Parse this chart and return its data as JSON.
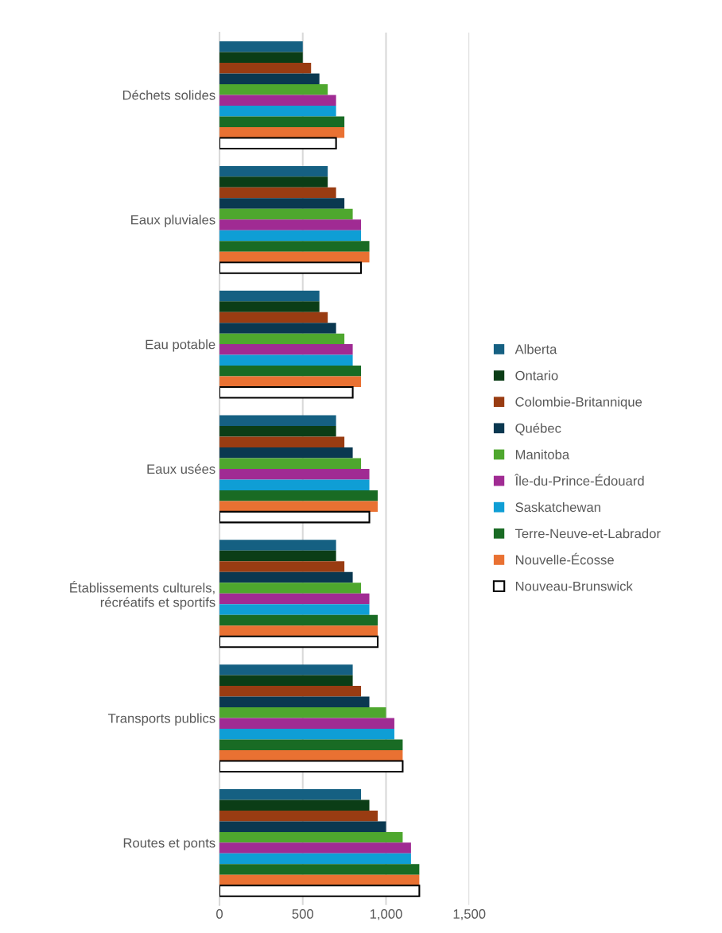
{
  "chart_data": {
    "type": "bar",
    "orientation": "horizontal",
    "categories": [
      "Déchets solides",
      "Eaux pluviales",
      "Eau potable",
      "Eaux usées",
      "Établissements culturels,\nrécréatifs et sportifs",
      "Transports publics",
      "Routes et ponts"
    ],
    "series": [
      {
        "name": "Alberta",
        "color": "#156082",
        "values": [
          500,
          650,
          600,
          700,
          700,
          800,
          850
        ]
      },
      {
        "name": "Ontario",
        "color": "#0b3d16",
        "values": [
          500,
          650,
          600,
          700,
          700,
          800,
          900
        ]
      },
      {
        "name": "Colombie-Britannique",
        "color": "#993c12",
        "values": [
          550,
          700,
          650,
          750,
          750,
          850,
          950
        ]
      },
      {
        "name": "Québec",
        "color": "#0a3850",
        "values": [
          600,
          750,
          700,
          800,
          800,
          900,
          1000
        ]
      },
      {
        "name": "Manitoba",
        "color": "#4ea72e",
        "values": [
          650,
          800,
          750,
          850,
          850,
          1000,
          1100
        ]
      },
      {
        "name": "Île-du-Prince-Édouard",
        "color": "#a02b93",
        "values": [
          700,
          850,
          800,
          900,
          900,
          1050,
          1150
        ]
      },
      {
        "name": "Saskatchewan",
        "color": "#0f9ed5",
        "values": [
          700,
          850,
          800,
          900,
          900,
          1050,
          1150
        ]
      },
      {
        "name": "Terre-Neuve-et-Labrador",
        "color": "#196b24",
        "values": [
          750,
          900,
          850,
          950,
          950,
          1100,
          1200
        ]
      },
      {
        "name": "Nouvelle-Écosse",
        "color": "#e97132",
        "values": [
          750,
          900,
          850,
          950,
          950,
          1100,
          1200
        ]
      },
      {
        "name": "Nouveau-Brunswick",
        "color": "#ffffff",
        "values": [
          700,
          850,
          800,
          900,
          950,
          1100,
          1200
        ]
      }
    ],
    "xlim": [
      0,
      1500
    ],
    "xticks": [
      0,
      500,
      {
        "value": 1000,
        "label": "1,000"
      },
      {
        "value": 1500,
        "label": "1,500"
      }
    ],
    "grid": "x",
    "legend": "right"
  }
}
